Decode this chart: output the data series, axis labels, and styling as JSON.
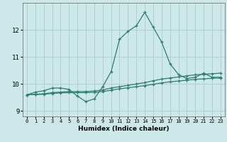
{
  "title": "",
  "xlabel": "Humidex (Indice chaleur)",
  "xlim": [
    -0.5,
    23.5
  ],
  "ylim": [
    8.8,
    13.0
  ],
  "yticks": [
    9,
    10,
    11,
    12
  ],
  "xticks": [
    0,
    1,
    2,
    3,
    4,
    5,
    6,
    7,
    8,
    9,
    10,
    11,
    12,
    13,
    14,
    15,
    16,
    17,
    18,
    19,
    20,
    21,
    22,
    23
  ],
  "bg_color": "#cce8e8",
  "grid_color": "#b0d0d0",
  "line_color": "#2e7d72",
  "line1": [
    9.6,
    9.7,
    9.75,
    9.85,
    9.85,
    9.8,
    9.55,
    9.35,
    9.45,
    9.9,
    10.45,
    11.65,
    11.95,
    12.15,
    12.65,
    12.1,
    11.55,
    10.75,
    10.35,
    10.2,
    10.25,
    10.4,
    10.25,
    10.25
  ],
  "line2": [
    9.6,
    9.62,
    9.64,
    9.68,
    9.7,
    9.72,
    9.72,
    9.72,
    9.74,
    9.78,
    9.85,
    9.9,
    9.95,
    10.0,
    10.05,
    10.12,
    10.18,
    10.22,
    10.26,
    10.3,
    10.34,
    10.36,
    10.38,
    10.4
  ],
  "line3": [
    9.6,
    9.61,
    9.62,
    9.65,
    9.67,
    9.68,
    9.68,
    9.68,
    9.69,
    9.72,
    9.77,
    9.82,
    9.86,
    9.9,
    9.94,
    9.99,
    10.04,
    10.08,
    10.11,
    10.14,
    10.17,
    10.19,
    10.21,
    10.22
  ]
}
